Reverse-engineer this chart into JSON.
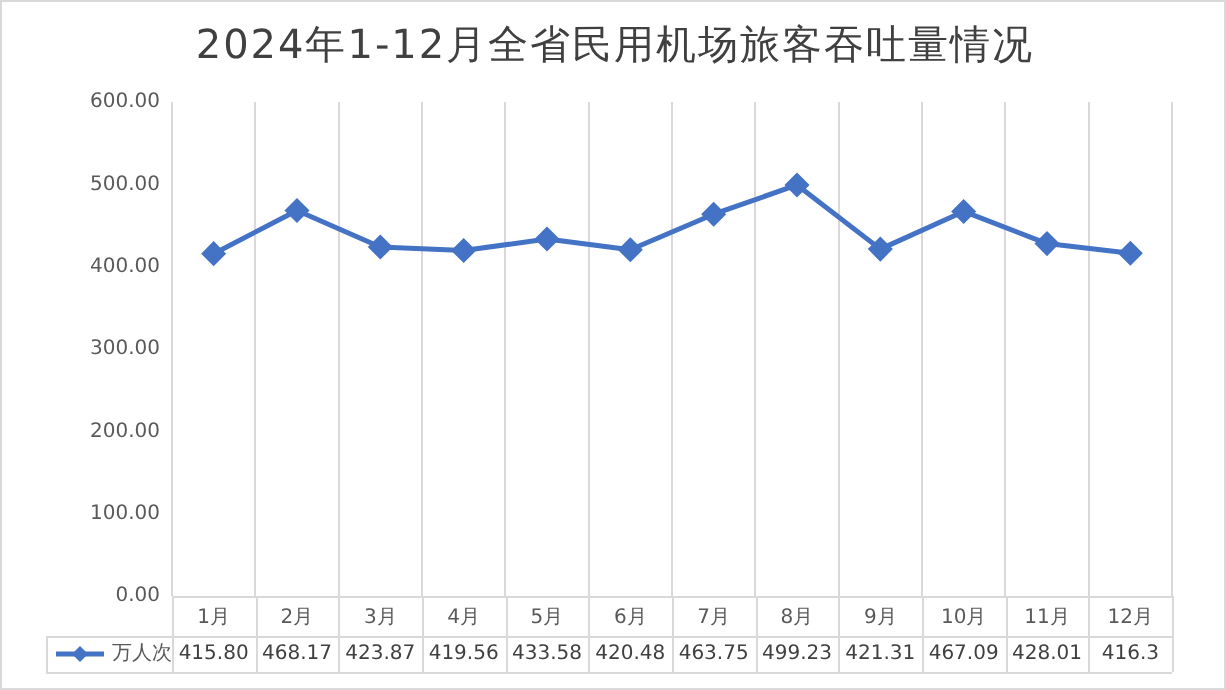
{
  "chart_data": {
    "type": "line",
    "title": "2024年1-12月全省民用机场旅客吞吐量情况",
    "categories": [
      "1月",
      "2月",
      "3月",
      "4月",
      "5月",
      "6月",
      "7月",
      "8月",
      "9月",
      "10月",
      "11月",
      "12月"
    ],
    "series": [
      {
        "name": "万人次",
        "color": "#4472c4",
        "values": [
          415.8,
          468.17,
          423.87,
          419.56,
          433.58,
          420.48,
          463.75,
          499.23,
          421.31,
          467.09,
          428.01,
          416.3
        ],
        "value_labels": [
          "415.80",
          "468.17",
          "423.87",
          "419.56",
          "433.58",
          "420.48",
          "463.75",
          "499.23",
          "421.31",
          "467.09",
          "428.01",
          "416.3"
        ]
      }
    ],
    "ylim": [
      0,
      600
    ],
    "yticks": [
      {
        "value": 0,
        "label": "0.00"
      },
      {
        "value": 100,
        "label": "100.00"
      },
      {
        "value": 200,
        "label": "200.00"
      },
      {
        "value": 300,
        "label": "300.00"
      },
      {
        "value": 400,
        "label": "400.00"
      },
      {
        "value": 500,
        "label": "500.00"
      },
      {
        "value": 600,
        "label": "600.00"
      }
    ],
    "grid": "x",
    "legend": "bottom",
    "marker": "diamond",
    "line_style": "solid"
  }
}
